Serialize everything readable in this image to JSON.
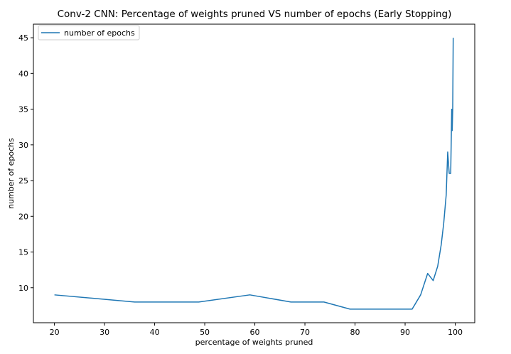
{
  "chart_data": {
    "type": "line",
    "title": "Conv-2 CNN: Percentage of weights pruned VS number of epochs (Early Stopping)",
    "xlabel": "percentage of weights pruned",
    "ylabel": "number of epochs",
    "xlim": [
      15.8,
      103.9
    ],
    "ylim": [
      5.1,
      46.9
    ],
    "xticks": [
      20,
      30,
      40,
      50,
      60,
      70,
      80,
      90,
      100
    ],
    "yticks": [
      10,
      15,
      20,
      25,
      30,
      35,
      40,
      45
    ],
    "grid": false,
    "legend_position": "top-left",
    "line_color": "#1f77b4",
    "series": [
      {
        "name": "number of epochs",
        "x": [
          20.0,
          36.0,
          48.8,
          59.0,
          67.2,
          73.8,
          79.0,
          83.2,
          86.6,
          89.3,
          91.4,
          93.1,
          94.5,
          95.6,
          96.5,
          97.2,
          97.7,
          98.2,
          98.5,
          98.8,
          99.1,
          99.3,
          99.4,
          99.5,
          99.6
        ],
        "y": [
          9,
          8,
          8,
          9,
          8,
          8,
          7,
          7,
          7,
          7,
          7,
          9,
          12,
          11,
          13,
          16,
          19,
          23,
          29,
          26,
          26,
          35,
          32,
          35,
          45
        ]
      }
    ]
  }
}
